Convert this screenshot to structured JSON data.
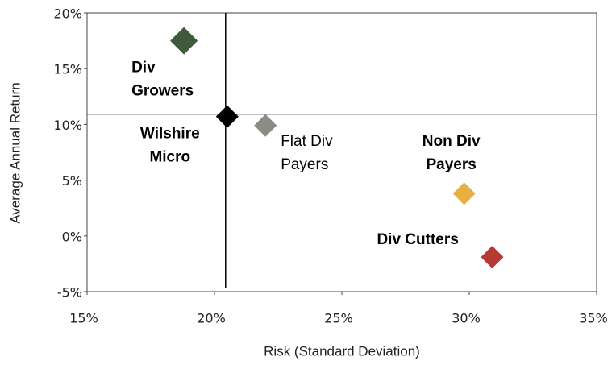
{
  "chart_data": {
    "type": "scatter",
    "xlabel": "Risk (Standard Deviation)",
    "ylabel": "Average Annual Return",
    "xlim": [
      15,
      35
    ],
    "ylim": [
      -5,
      20
    ],
    "xticks": [
      {
        "value": 15,
        "label": "15%"
      },
      {
        "value": 20,
        "label": "20%"
      },
      {
        "value": 25,
        "label": "25%"
      },
      {
        "value": 30,
        "label": "30%"
      },
      {
        "value": 35,
        "label": "35%"
      }
    ],
    "yticks": [
      {
        "value": -5,
        "label": "-5%"
      },
      {
        "value": 0,
        "label": "0%"
      },
      {
        "value": 5,
        "label": "5%"
      },
      {
        "value": 10,
        "label": "10%"
      },
      {
        "value": 15,
        "label": "15%"
      },
      {
        "value": 20,
        "label": "20%"
      }
    ],
    "points": [
      {
        "label": [
          "Div",
          "Growers"
        ],
        "x": 18.8,
        "y": 17.5,
        "color": "#3d5a3a",
        "bold": true
      },
      {
        "label": [
          "Wilshire",
          "Micro"
        ],
        "x": 20.5,
        "y": 10.7,
        "color": "#000000",
        "bold": true
      },
      {
        "label": [
          "Flat Div",
          "Payers"
        ],
        "x": 22.0,
        "y": 9.9,
        "color": "#8c8c86",
        "bold": false
      },
      {
        "label": [
          "Non Div",
          "Payers"
        ],
        "x": 29.8,
        "y": 3.8,
        "color": "#e8b040",
        "bold": true
      },
      {
        "label": [
          "Div Cutters"
        ],
        "x": 30.9,
        "y": -1.9,
        "color": "#b53a33",
        "bold": true
      }
    ]
  }
}
